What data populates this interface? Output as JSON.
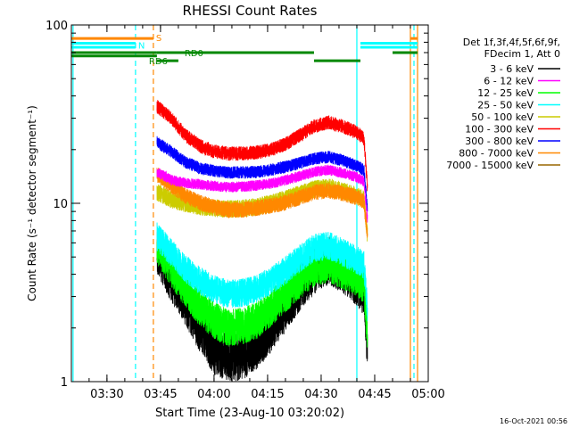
{
  "chart_data": {
    "type": "line",
    "title": "RHESSI Count Rates",
    "xlabel": "Start Time (23-Aug-10 03:20:02)",
    "ylabel": "Count Rate (s⁻¹ detector segment⁻¹)",
    "y_scale": "log",
    "ylim": [
      1,
      100
    ],
    "xlim": [
      "03:20:02",
      "05:00:00"
    ],
    "x_ticks": [
      "03:30",
      "03:45",
      "04:00",
      "04:15",
      "04:30",
      "04:45",
      "05:00"
    ],
    "y_ticks": [
      "1",
      "10",
      "100"
    ],
    "grid": false,
    "legend_position": "right",
    "legend_header": [
      "Det 1f,3f,4f,5f,6f,9f,",
      "FDecim 1, Att 0"
    ],
    "series": [
      {
        "name": "3 - 6 keV",
        "color": "#000000",
        "x": [
          "03:44",
          "03:48",
          "03:52",
          "03:56",
          "04:00",
          "04:04",
          "04:08",
          "04:12",
          "04:16",
          "04:20",
          "04:24",
          "04:28",
          "04:32",
          "04:36",
          "04:40",
          "04:42",
          "04:43"
        ],
        "values": [
          5.5,
          3.8,
          2.8,
          2.0,
          1.5,
          1.35,
          1.4,
          1.6,
          2.0,
          2.6,
          3.4,
          4.2,
          4.8,
          4.3,
          3.6,
          3.2,
          1.5
        ]
      },
      {
        "name": "6 - 12 keV",
        "color": "#ff00ff",
        "x": [
          "03:44",
          "03:48",
          "03:52",
          "03:56",
          "04:00",
          "04:04",
          "04:08",
          "04:12",
          "04:16",
          "04:20",
          "04:24",
          "04:28",
          "04:32",
          "04:36",
          "04:40",
          "04:42",
          "04:43"
        ],
        "values": [
          15,
          13.5,
          13,
          12.8,
          12.5,
          12.3,
          12.4,
          12.6,
          12.9,
          13.5,
          14.2,
          15,
          15.4,
          14.8,
          14,
          13.2,
          8
        ]
      },
      {
        "name": "12 - 25 keV",
        "color": "#00ff00",
        "x": [
          "03:44",
          "03:48",
          "03:52",
          "03:56",
          "04:00",
          "04:04",
          "04:08",
          "04:12",
          "04:16",
          "04:20",
          "04:24",
          "04:28",
          "04:32",
          "04:36",
          "04:40",
          "04:42",
          "04:43"
        ],
        "values": [
          5.8,
          4.3,
          3.3,
          2.6,
          2.2,
          2.0,
          2.05,
          2.2,
          2.6,
          3.1,
          3.7,
          4.3,
          4.6,
          4.2,
          3.8,
          3.5,
          1.8
        ]
      },
      {
        "name": "25 - 50 keV",
        "color": "#00ffff",
        "x": [
          "03:44",
          "03:48",
          "03:52",
          "03:56",
          "04:00",
          "04:04",
          "04:08",
          "04:12",
          "04:16",
          "04:20",
          "04:24",
          "04:28",
          "04:32",
          "04:36",
          "04:40",
          "04:42",
          "04:43"
        ],
        "values": [
          6.5,
          5.3,
          4.3,
          3.7,
          3.3,
          3.1,
          3.15,
          3.3,
          3.7,
          4.2,
          4.9,
          5.6,
          5.8,
          5.3,
          4.8,
          4.5,
          2.5
        ]
      },
      {
        "name": "50 - 100 keV",
        "color": "#cccc00",
        "x": [
          "03:44",
          "03:48",
          "03:52",
          "03:56",
          "04:00",
          "04:04",
          "04:08",
          "04:12",
          "04:16",
          "04:20",
          "04:24",
          "04:28",
          "04:32",
          "04:36",
          "04:40",
          "04:42",
          "04:43"
        ],
        "values": [
          11.5,
          10.5,
          10.0,
          9.6,
          9.4,
          9.3,
          9.35,
          9.6,
          10.0,
          10.6,
          11.3,
          12.0,
          12.3,
          11.8,
          11.0,
          10.5,
          6.5
        ]
      },
      {
        "name": "100 - 300 keV",
        "color": "#ff0000",
        "x": [
          "03:44",
          "03:48",
          "03:52",
          "03:56",
          "04:00",
          "04:04",
          "04:08",
          "04:12",
          "04:16",
          "04:20",
          "04:24",
          "04:28",
          "04:32",
          "04:36",
          "04:40",
          "04:42",
          "04:43"
        ],
        "values": [
          35,
          30,
          24,
          21,
          19.5,
          19,
          19,
          19.3,
          20,
          21.5,
          24,
          27,
          28.5,
          27,
          25,
          23,
          12
        ]
      },
      {
        "name": "300 - 800 keV",
        "color": "#0000ff",
        "x": [
          "03:44",
          "03:48",
          "03:52",
          "03:56",
          "04:00",
          "04:04",
          "04:08",
          "04:12",
          "04:16",
          "04:20",
          "04:24",
          "04:28",
          "04:32",
          "04:36",
          "04:40",
          "04:42",
          "04:43"
        ],
        "values": [
          22,
          19.5,
          17,
          15.8,
          15.2,
          14.9,
          14.9,
          15.0,
          15.4,
          16.0,
          16.8,
          17.8,
          18.2,
          17.4,
          16.2,
          15.3,
          9
        ]
      },
      {
        "name": "800 - 7000 keV",
        "color": "#ff8800",
        "x": [
          "03:44",
          "03:48",
          "03:52",
          "03:56",
          "04:00",
          "04:04",
          "04:08",
          "04:12",
          "04:16",
          "04:20",
          "04:24",
          "04:28",
          "04:32",
          "04:36",
          "04:40",
          "04:42",
          "04:43"
        ],
        "values": [
          14.5,
          12.5,
          11.0,
          10.1,
          9.5,
          9.2,
          9.2,
          9.4,
          9.7,
          10.1,
          10.8,
          11.5,
          11.8,
          11.4,
          10.8,
          10.2,
          6.5
        ]
      },
      {
        "name": "7000 - 15000 keV",
        "color": "#996600",
        "x": [],
        "values": []
      }
    ],
    "annotations": [
      {
        "text": "S",
        "color": "#ff8800",
        "time": "03:43",
        "level": 85
      },
      {
        "text": "N",
        "color": "#00ffff",
        "time": "03:38",
        "level": 77
      },
      {
        "text": "RD6",
        "color": "#008800",
        "time": "03:41",
        "level": 63
      },
      {
        "text": "RD0",
        "color": "#008800",
        "time": "03:51",
        "level": 70
      }
    ],
    "state_bars": [
      {
        "color": "#ff8800",
        "level": 84,
        "x1": "03:20",
        "x2": "03:43"
      },
      {
        "color": "#ff8800",
        "level": 84,
        "x1": "04:55",
        "x2": "04:57"
      },
      {
        "color": "#00ffff",
        "level": 79,
        "x1": "03:20",
        "x2": "03:38"
      },
      {
        "color": "#00ffff",
        "level": 79,
        "x1": "04:41",
        "x2": "04:57"
      },
      {
        "color": "#00ffff",
        "level": 75,
        "x1": "03:20",
        "x2": "03:38"
      },
      {
        "color": "#00ffff",
        "level": 75,
        "x1": "04:41",
        "x2": "04:57"
      },
      {
        "color": "#008800",
        "level": 70,
        "x1": "03:20",
        "x2": "03:44"
      },
      {
        "color": "#008800",
        "level": 70,
        "x1": "03:44",
        "x2": "04:28"
      },
      {
        "color": "#008800",
        "level": 70,
        "x1": "04:50",
        "x2": "04:57"
      },
      {
        "color": "#008800",
        "level": 63,
        "x1": "03:44",
        "x2": "03:50"
      },
      {
        "color": "#008800",
        "level": 63,
        "x1": "04:28",
        "x2": "04:41"
      },
      {
        "color": "#008800",
        "level": 67,
        "x1": "03:20",
        "x2": "03:44"
      }
    ],
    "vertical_markers": [
      {
        "time": "03:20:30",
        "color": "#00ffff",
        "style": "solid"
      },
      {
        "time": "03:38",
        "color": "#00ffff",
        "style": "dashed"
      },
      {
        "time": "03:43",
        "color": "#ff8800",
        "style": "dashed"
      },
      {
        "time": "04:40",
        "color": "#00ffff",
        "style": "solid"
      },
      {
        "time": "04:55",
        "color": "#ff8800",
        "style": "solid"
      },
      {
        "time": "04:56",
        "color": "#00ffff",
        "style": "dashed"
      },
      {
        "time": "04:57",
        "color": "#ff8800",
        "style": "solid"
      }
    ],
    "footer_timestamp": "16-Oct-2021 00:56"
  }
}
